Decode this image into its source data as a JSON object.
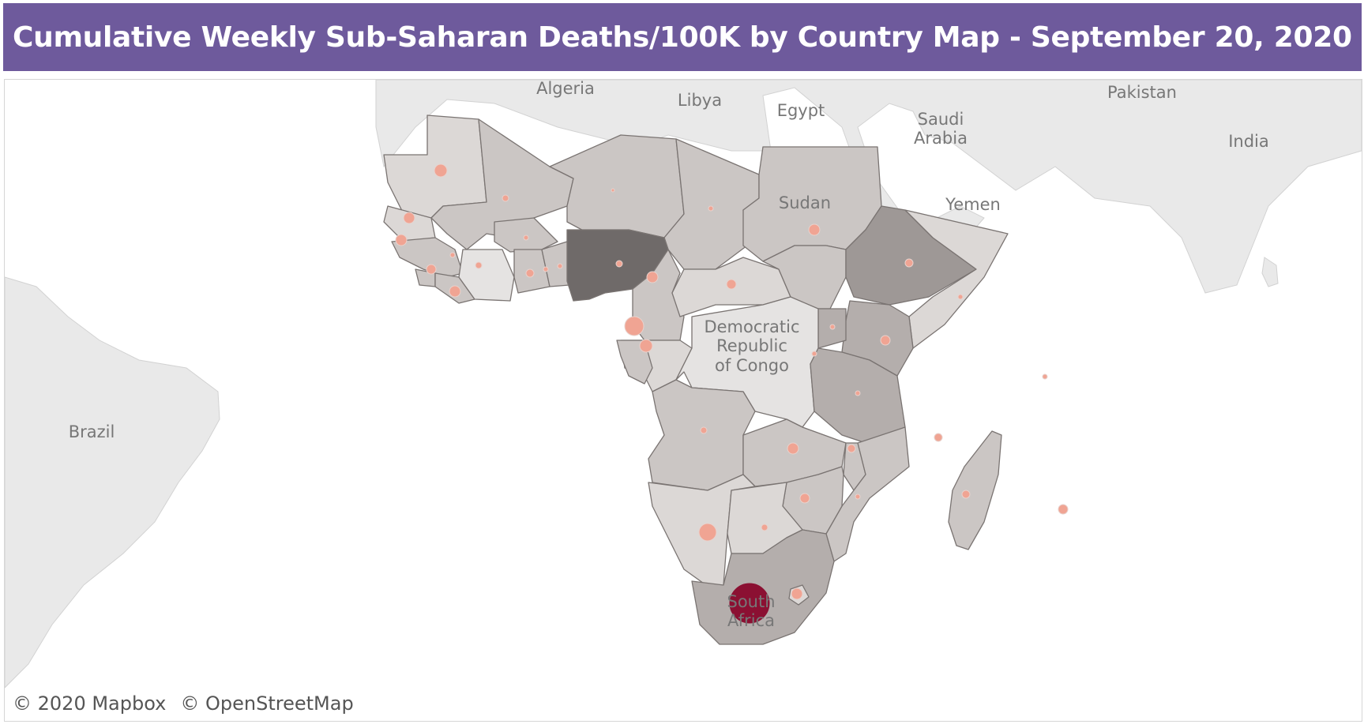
{
  "title": "Cumulative Weekly Sub-Saharan Deaths/100K by Country Map - September 20, 2020",
  "colors": {
    "title_bar": "#6e5a9c",
    "ocean": "#ffffff",
    "land_background": "#e9e9e9",
    "country_light": "#dcd8d6",
    "country_mid": "#cbc6c4",
    "country_dark": "#b4aeac",
    "country_darker": "#9e9896",
    "country_darkest": "#6f6a69",
    "bubble_small": "#f0a493",
    "bubble_large": "#8b1032"
  },
  "map_labels": {
    "algeria": "Algeria",
    "libya": "Libya",
    "egypt": "Egypt",
    "saudi_line1": "Saudi",
    "saudi_line2": "Arabia",
    "pakistan": "Pakistan",
    "india": "India",
    "yemen": "Yemen",
    "sudan": "Sudan",
    "drc_line1": "Democratic",
    "drc_line2": "Republic",
    "drc_line3": "of Congo",
    "brazil": "Brazil",
    "south_africa_line1": "South",
    "south_africa_line2": "Africa"
  },
  "attribution": {
    "mapbox": "© 2020 Mapbox",
    "osm": "© OpenStreetMap"
  }
}
